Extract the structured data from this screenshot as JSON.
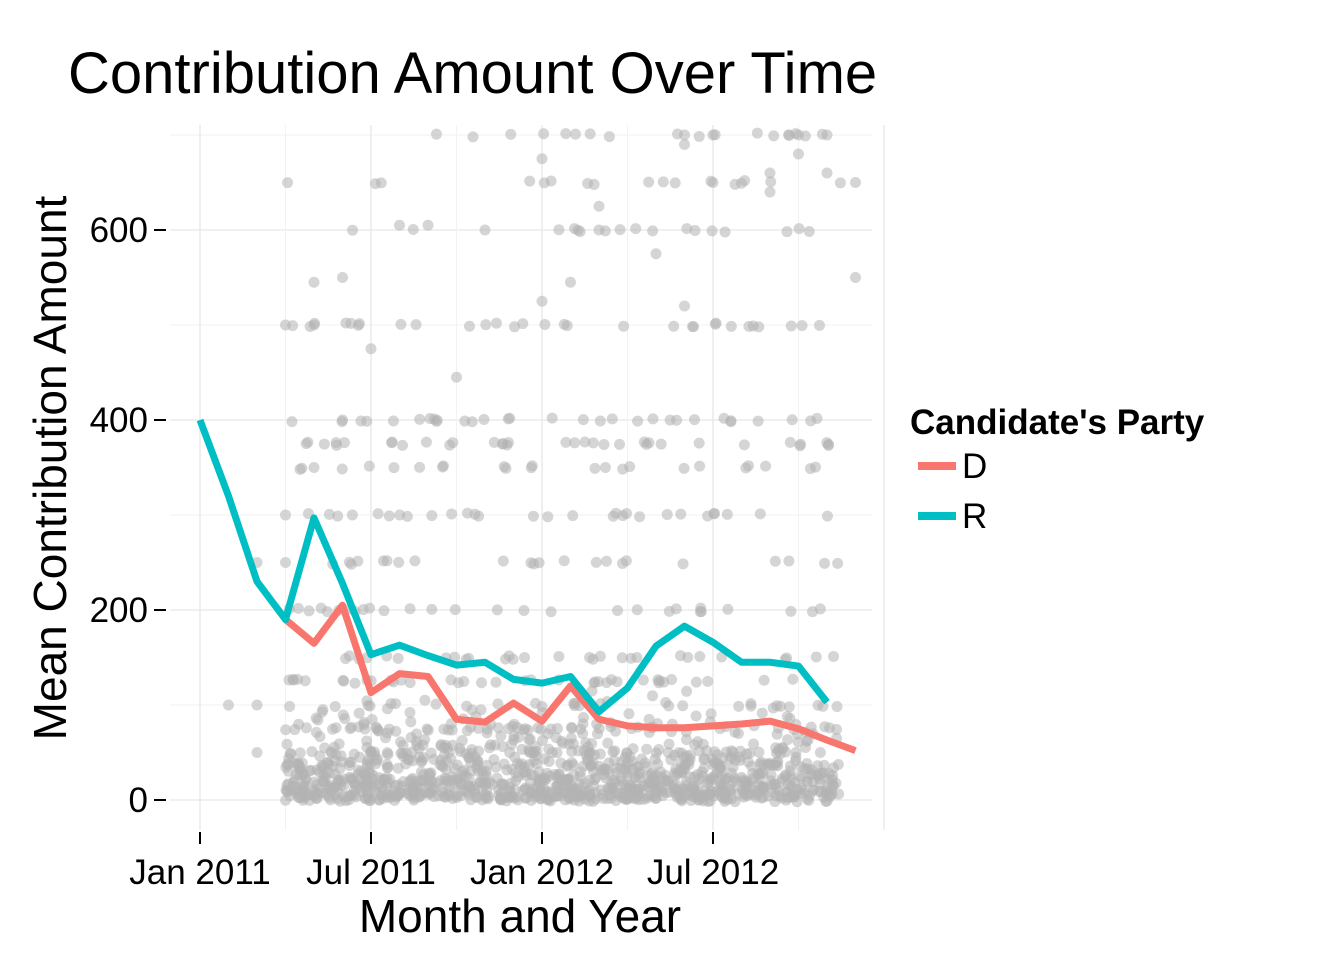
{
  "chart_data": {
    "type": "line",
    "title": "Contribution Amount Over Time",
    "xlabel": "Month and Year",
    "ylabel": "Mean Contribution Amount",
    "x_ticks": [
      "Jan 2011",
      "Jul 2011",
      "Jan 2012",
      "Jul 2012"
    ],
    "y_ticks": [
      0,
      200,
      400,
      600
    ],
    "ylim": [
      -35,
      700
    ],
    "grid": true,
    "legend": {
      "title": "Candidate's Party",
      "placement": "right"
    },
    "series": [
      {
        "name": "D",
        "color": "#F8766D",
        "points": [
          {
            "x": "2011-04",
            "y": 190
          },
          {
            "x": "2011-05",
            "y": 165
          },
          {
            "x": "2011-06",
            "y": 205
          },
          {
            "x": "2011-07",
            "y": 113
          },
          {
            "x": "2011-08",
            "y": 133
          },
          {
            "x": "2011-09",
            "y": 130
          },
          {
            "x": "2011-10",
            "y": 85
          },
          {
            "x": "2011-11",
            "y": 82
          },
          {
            "x": "2011-12",
            "y": 102
          },
          {
            "x": "2012-01",
            "y": 83
          },
          {
            "x": "2012-02",
            "y": 120
          },
          {
            "x": "2012-03",
            "y": 85
          },
          {
            "x": "2012-04",
            "y": 78
          },
          {
            "x": "2012-05",
            "y": 76
          },
          {
            "x": "2012-06",
            "y": 76
          },
          {
            "x": "2012-07",
            "y": 78
          },
          {
            "x": "2012-08",
            "y": 80
          },
          {
            "x": "2012-09",
            "y": 83
          },
          {
            "x": "2012-10",
            "y": 75
          },
          {
            "x": "2012-11",
            "y": 63
          },
          {
            "x": "2012-12",
            "y": 52
          }
        ]
      },
      {
        "name": "R",
        "color": "#00BFC4",
        "points": [
          {
            "x": "2011-01",
            "y": 400
          },
          {
            "x": "2011-02",
            "y": 320
          },
          {
            "x": "2011-03",
            "y": 230
          },
          {
            "x": "2011-04",
            "y": 190
          },
          {
            "x": "2011-05",
            "y": 297
          },
          {
            "x": "2011-06",
            "y": 228
          },
          {
            "x": "2011-07",
            "y": 153
          },
          {
            "x": "2011-08",
            "y": 163
          },
          {
            "x": "2011-09",
            "y": 152
          },
          {
            "x": "2011-10",
            "y": 142
          },
          {
            "x": "2011-11",
            "y": 145
          },
          {
            "x": "2011-12",
            "y": 127
          },
          {
            "x": "2012-01",
            "y": 123
          },
          {
            "x": "2012-02",
            "y": 130
          },
          {
            "x": "2012-03",
            "y": 93
          },
          {
            "x": "2012-04",
            "y": 118
          },
          {
            "x": "2012-05",
            "y": 162
          },
          {
            "x": "2012-06",
            "y": 183
          },
          {
            "x": "2012-07",
            "y": 166
          },
          {
            "x": "2012-08",
            "y": 145
          },
          {
            "x": "2012-09",
            "y": 145
          },
          {
            "x": "2012-10",
            "y": 141
          },
          {
            "x": "2012-11",
            "y": 103
          }
        ]
      }
    ],
    "scatter": {
      "color": "#B3B3B3",
      "opacity": 0.55,
      "description_free_levels": [
        5,
        10,
        15,
        20,
        25,
        30,
        35,
        40,
        50,
        75,
        100,
        125,
        150,
        200,
        250,
        300,
        350,
        375,
        400,
        500,
        600,
        650,
        700
      ],
      "points": [
        {
          "x": "2011-04",
          "y": 500
        },
        {
          "x": "2011-04",
          "y": 300
        },
        {
          "x": "2011-04",
          "y": 250
        },
        {
          "x": "2011-05",
          "y": 545
        },
        {
          "x": "2011-05",
          "y": 500
        },
        {
          "x": "2011-05",
          "y": 350
        },
        {
          "x": "2011-06",
          "y": 550
        },
        {
          "x": "2011-06",
          "y": 400
        },
        {
          "x": "2011-07",
          "y": 475
        },
        {
          "x": "2011-08",
          "y": 605
        },
        {
          "x": "2011-09",
          "y": 605
        },
        {
          "x": "2011-10",
          "y": 445
        },
        {
          "x": "2011-11",
          "y": 600
        },
        {
          "x": "2012-01",
          "y": 675
        },
        {
          "x": "2012-01",
          "y": 525
        },
        {
          "x": "2012-03",
          "y": 625
        },
        {
          "x": "2012-03",
          "y": 600
        },
        {
          "x": "2012-06",
          "y": 700
        },
        {
          "x": "2012-06",
          "y": 690
        },
        {
          "x": "2012-07",
          "y": 700
        },
        {
          "x": "2012-07",
          "y": 650
        },
        {
          "x": "2012-09",
          "y": 660
        },
        {
          "x": "2012-09",
          "y": 640
        },
        {
          "x": "2012-10",
          "y": 700
        },
        {
          "x": "2012-10",
          "y": 680
        },
        {
          "x": "2012-11",
          "y": 700
        },
        {
          "x": "2012-11",
          "y": 660
        },
        {
          "x": "2012-12",
          "y": 650
        },
        {
          "x": "2012-12",
          "y": 550
        },
        {
          "x": "2011-03",
          "y": 250
        },
        {
          "x": "2011-03",
          "y": 100
        },
        {
          "x": "2011-02",
          "y": 100
        },
        {
          "x": "2011-03",
          "y": 50
        },
        {
          "x": "2012-02",
          "y": 545
        },
        {
          "x": "2012-05",
          "y": 575
        },
        {
          "x": "2012-06",
          "y": 520
        }
      ]
    }
  }
}
